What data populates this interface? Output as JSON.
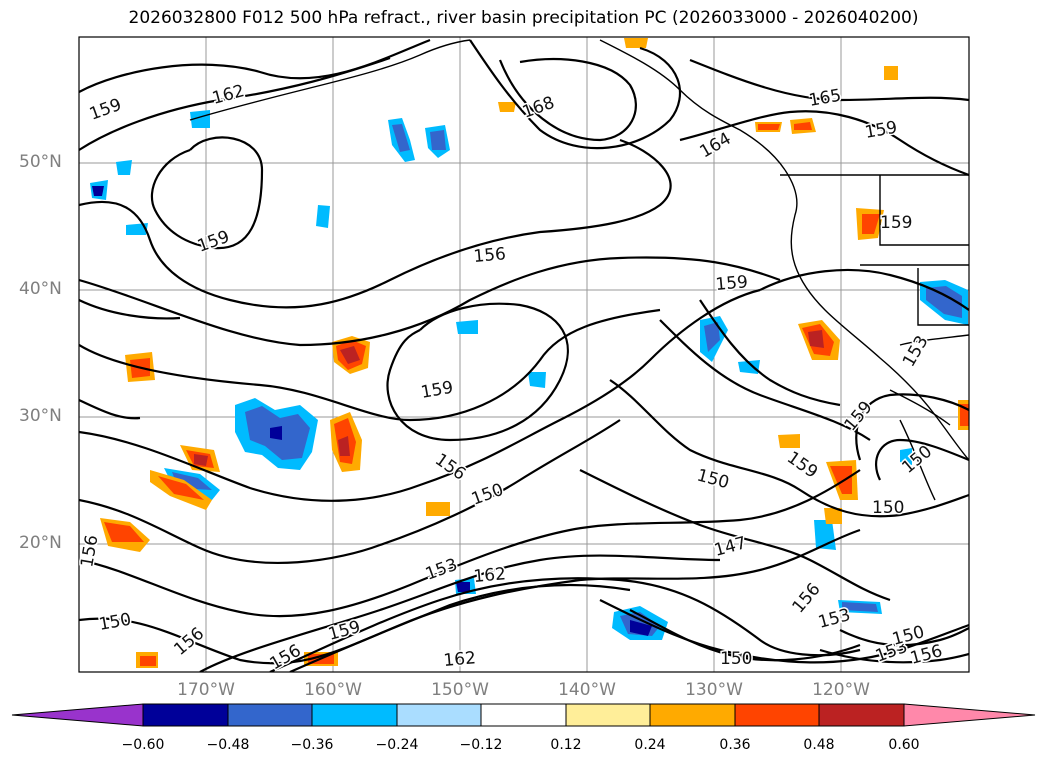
{
  "title": "2026032800 F012 500 hPa refract., river basin precipitation PC (2026033000 - 2026040200)",
  "map": {
    "lat_labels": [
      "50°N",
      "40°N",
      "30°N",
      "20°N"
    ],
    "lon_labels": [
      "170°W",
      "160°W",
      "150°W",
      "140°W",
      "130°W",
      "120°W"
    ],
    "contour_labels": [
      "159",
      "162",
      "168",
      "165",
      "164",
      "159",
      "159",
      "156",
      "159",
      "159",
      "159",
      "156",
      "150",
      "150",
      "147",
      "159",
      "159",
      "150",
      "153",
      "162",
      "153",
      "156",
      "150",
      "156",
      "153",
      "150",
      "150",
      "156",
      "162",
      "159",
      "156",
      "150",
      "153",
      "156"
    ],
    "grid": true,
    "coastline_color": "#000000",
    "contour_color": "#000000"
  },
  "colorbar": {
    "ticks": [
      "−0.60",
      "−0.48",
      "−0.36",
      "−0.24",
      "−0.12",
      "0.12",
      "0.24",
      "0.36",
      "0.48",
      "0.60"
    ],
    "colors": [
      "#9933cc",
      "#000099",
      "#3366cc",
      "#00bbff",
      "#aaddff",
      "#ffffff",
      "#ffee99",
      "#ffaa00",
      "#ff4400",
      "#bb2222",
      "#ff88aa"
    ],
    "extend": "both"
  }
}
